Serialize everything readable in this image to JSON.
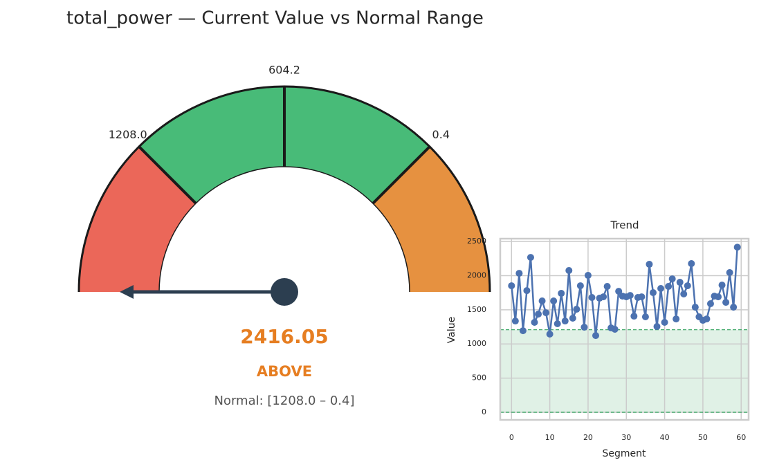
{
  "chart_data": [
    {
      "type": "gauge",
      "title": "total_power — Current Value vs Normal Range",
      "ylim": [
        1811.8,
        -603.4
      ],
      "yticks": [
        {
          "value": 1208,
          "label": "1208.0"
        },
        604.2,
        0.4
      ],
      "band_colors": [
        "#eb6759",
        "#48bb78",
        "#e69140"
      ],
      "value": 2416.05,
      "value_color": "#e67e22",
      "needle_color": "#2c3e50",
      "status": "ABOVE",
      "normal_label": "Normal: [1208.0 – 0.4]"
    },
    {
      "type": "line",
      "title": "Trend",
      "xlabel": "Segment",
      "ylabel": "Value",
      "x": [
        0,
        1,
        2,
        3,
        4,
        5,
        6,
        7,
        8,
        9,
        10,
        11,
        12,
        13,
        14,
        15,
        16,
        17,
        18,
        19,
        20,
        21,
        22,
        23,
        24,
        25,
        26,
        27,
        28,
        29,
        30,
        31,
        32,
        33,
        34,
        35,
        36,
        37,
        38,
        39,
        40,
        41,
        42,
        43,
        44,
        45,
        46,
        47,
        48,
        49,
        50,
        51,
        52,
        53,
        54,
        55,
        56,
        57,
        58,
        59
      ],
      "values": [
        1852,
        1336,
        2034,
        1194,
        1781,
        2267,
        1316,
        1437,
        1630,
        1457,
        1144,
        1630,
        1296,
        1741,
        1336,
        2075,
        1377,
        1508,
        1852,
        1245,
        2004,
        1680,
        1123,
        1670,
        1690,
        1842,
        1235,
        1215,
        1771,
        1700,
        1690,
        1710,
        1407,
        1680,
        1690,
        1397,
        2166,
        1751,
        1255,
        1812,
        1316,
        1842,
        1953,
        1366,
        1903,
        1731,
        1852,
        2176,
        1538,
        1397,
        1346,
        1366,
        1589,
        1700,
        1690,
        1862,
        1609,
        2045,
        1538,
        2416.05
      ],
      "color": "#4c72b0",
      "band": [
        0.4,
        1208
      ],
      "band_color": "#2ca05a",
      "xlim": [
        -2.95,
        61.95
      ],
      "ylim": [
        -111,
        2541
      ],
      "xticks": [
        0,
        10,
        20,
        30,
        40,
        50,
        60
      ],
      "yticks": [
        0,
        500,
        1000,
        1500,
        2000,
        2500
      ],
      "grid": true
    }
  ]
}
